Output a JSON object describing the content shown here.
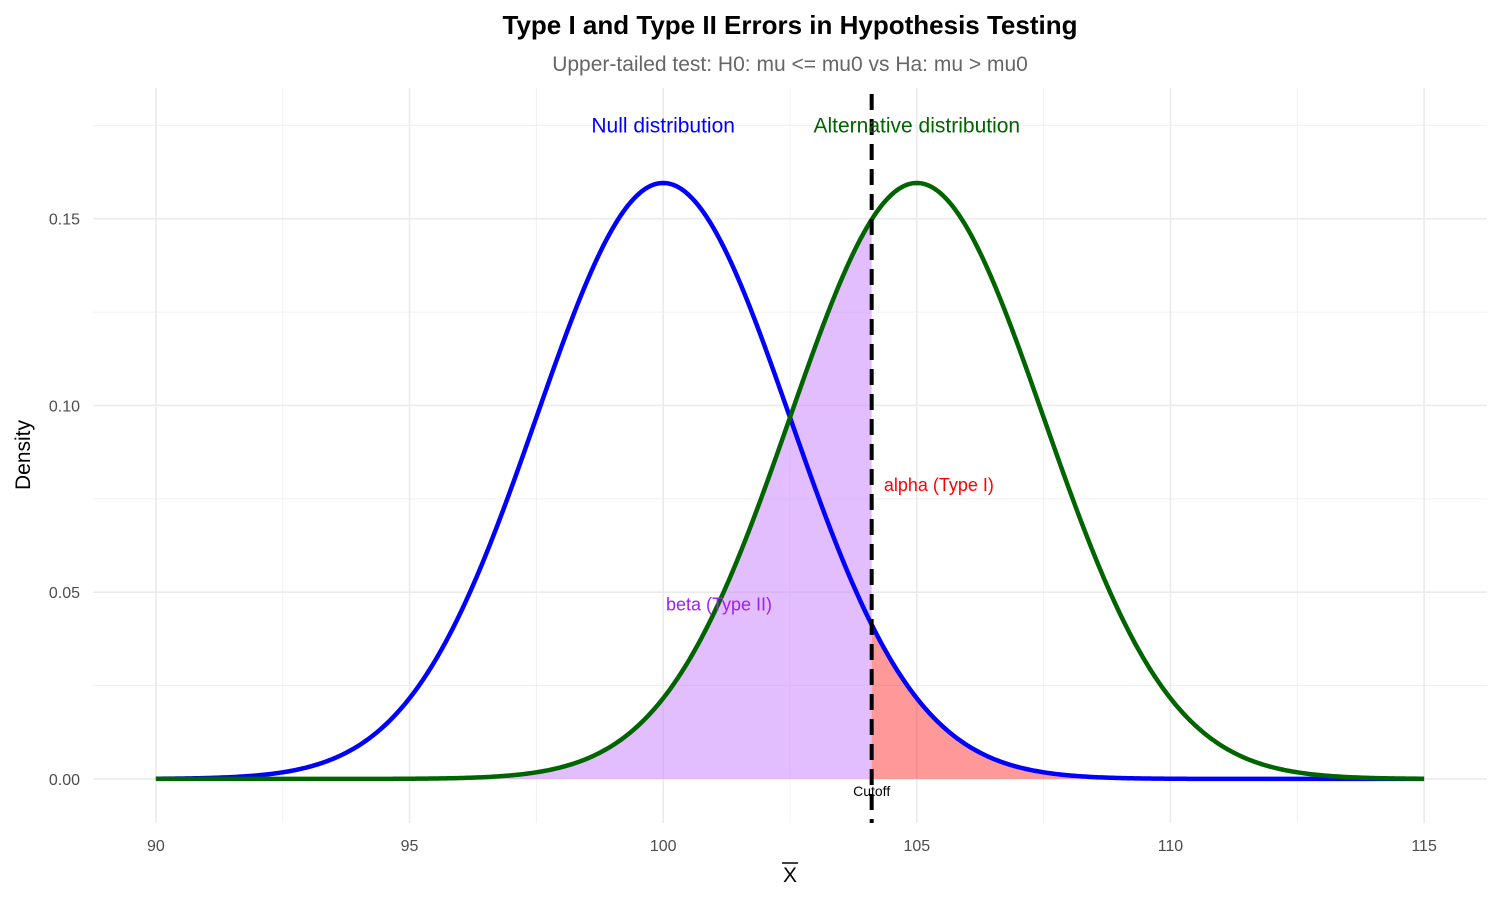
{
  "chart_data": {
    "type": "line",
    "title": "Type I and Type II Errors in Hypothesis Testing",
    "subtitle": "Upper-tailed test: H0: mu <= mu0 vs Ha: mu > mu0",
    "xlabel": "X",
    "xlabel_overline": true,
    "ylabel": "Density",
    "xlim": [
      88.76,
      116.24
    ],
    "ylim": [
      -0.0118,
      0.185
    ],
    "x_ticks": [
      90,
      95,
      100,
      105,
      110,
      115
    ],
    "x_tick_labels": [
      "90",
      "95",
      "100",
      "105",
      "110",
      "115"
    ],
    "y_ticks": [
      0,
      0.05,
      0.1,
      0.15
    ],
    "y_tick_labels": [
      "0.00",
      "0.05",
      "0.10",
      "0.15"
    ],
    "grid": true,
    "x_domain": [
      90,
      115
    ],
    "series": [
      {
        "label": "Null distribution",
        "distribution": "normal",
        "mean": 100,
        "sd": 2.5,
        "color": "#0000ff"
      },
      {
        "label": "Alternative distribution",
        "distribution": "normal",
        "mean": 105,
        "sd": 2.5,
        "color": "#006400"
      }
    ],
    "cutoff": {
      "value": 104.11,
      "label": "Cutoff"
    },
    "shaded_regions": [
      {
        "label": "beta (Type II)",
        "under": "Alternative distribution",
        "from": 90,
        "to": 104.11,
        "color": "#c77dff",
        "opacity": 0.5
      },
      {
        "label": "alpha (Type I)",
        "under": "Null distribution",
        "from": 104.11,
        "to": 115,
        "color": "#ff0000",
        "opacity": 0.4
      }
    ],
    "annotations": [
      {
        "text": "Null distribution",
        "x": 100,
        "y": 0.175,
        "color": "#0000ff",
        "anchor": "middle"
      },
      {
        "text": "Alternative distribution",
        "x": 105,
        "y": 0.175,
        "color": "#006400",
        "anchor": "middle"
      },
      {
        "text": "alpha (Type I)",
        "x": 104.35,
        "y": 0.079,
        "color": "#ff0000",
        "anchor": "start"
      },
      {
        "text": "beta (Type II)",
        "x": 101.1,
        "y": 0.047,
        "color": "#a020f0",
        "anchor": "middle"
      },
      {
        "text": "Cutoff",
        "x": 104.11,
        "y": -0.0032,
        "color": "#000000",
        "anchor": "middle"
      }
    ]
  }
}
